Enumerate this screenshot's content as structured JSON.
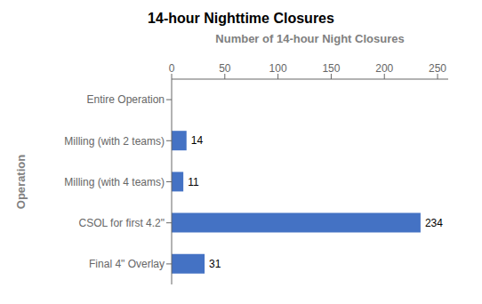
{
  "chart_data": {
    "type": "bar",
    "orientation": "horizontal",
    "title": "14-hour Nighttime Closures",
    "xlabel": "Number of 14-hour Night Closures",
    "ylabel": "Operation",
    "categories": [
      "Entire Operation",
      "Milling (with 2 teams)",
      "Milling (with 4 teams)",
      "CSOL for first 4.2\"",
      "Final 4\" Overlay"
    ],
    "values": [
      0,
      14,
      11,
      234,
      31
    ],
    "color": "#4472C4",
    "xlim": [
      0,
      260
    ],
    "xticks": [
      0,
      50,
      100,
      150,
      200,
      250
    ],
    "data_labels": true,
    "grid": false
  }
}
